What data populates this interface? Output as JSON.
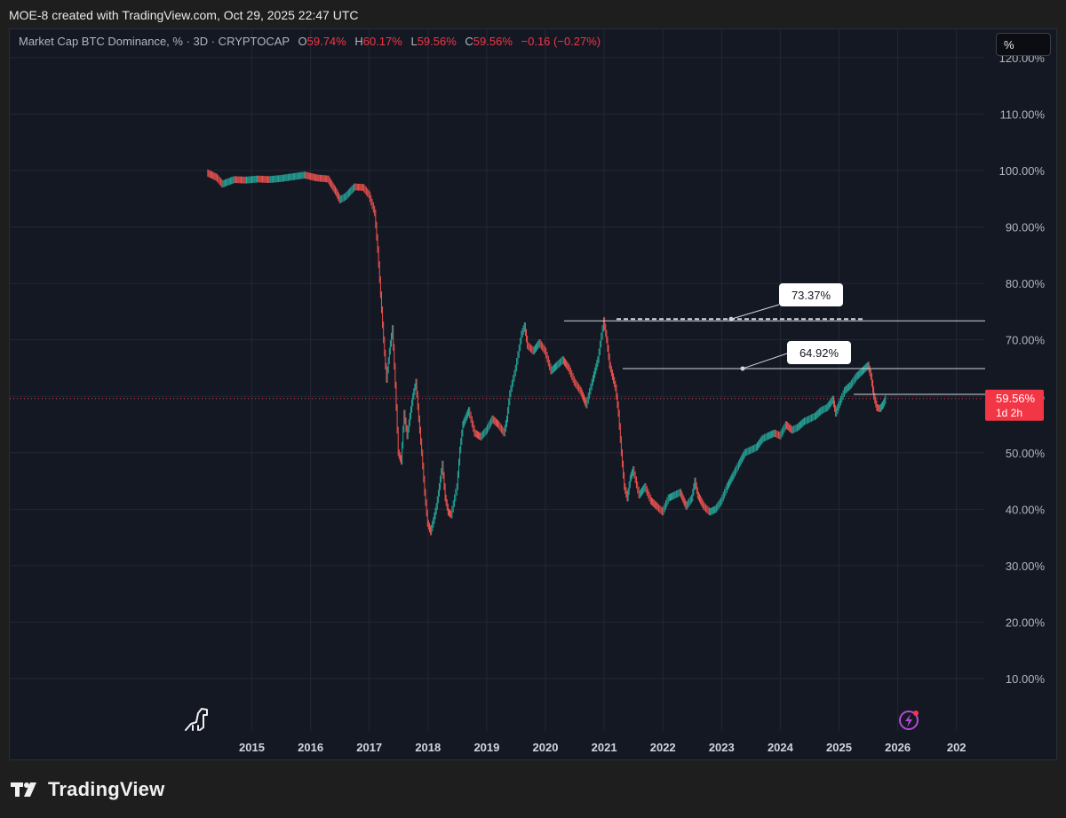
{
  "caption": "MOE-8 created with TradingView.com, Oct 29, 2025 22:47 UTC",
  "legend": {
    "symbol": "Market Cap BTC Dominance, % · 3D · CRYPTOCAP",
    "o_label": "O",
    "o_value": "59.74%",
    "h_label": "H",
    "h_value": "60.17%",
    "l_label": "L",
    "l_value": "59.56%",
    "c_label": "C",
    "c_value": "59.56%",
    "change": "−0.16 (−0.27%)"
  },
  "scale_button": "%",
  "price_tag": {
    "value": "59.56%",
    "countdown": "1d 2h",
    "color": "#f23645"
  },
  "annotations": [
    {
      "text": "73.37%",
      "level": 73.37
    },
    {
      "text": "64.92%",
      "level": 64.92
    }
  ],
  "brand": "TradingView",
  "icons": {
    "logo": "dinosaur-icon",
    "alert": "lightning-icon",
    "brand": "tradingview-logo-icon"
  },
  "colors": {
    "up": "#26a69a",
    "down": "#ef5350",
    "price_line": "#f23645",
    "grid": "#232734"
  },
  "chart_data": {
    "type": "line",
    "title": "Market Cap BTC Dominance, % · 3D · CRYPTOCAP",
    "xlabel": "",
    "ylabel": "",
    "ylim": [
      0,
      122
    ],
    "xlim": [
      2013.55,
      2027.15
    ],
    "grid": true,
    "log_scale": false,
    "x_ticks": [
      "2015",
      "2016",
      "2017",
      "2018",
      "2019",
      "2020",
      "2021",
      "2022",
      "2023",
      "2024",
      "2025",
      "2026",
      "202"
    ],
    "y_ticks": [
      "120.00%",
      "110.00%",
      "100.00%",
      "90.00%",
      "80.00%",
      "70.00%",
      "60.00%",
      "50.00%",
      "40.00%",
      "30.00%",
      "20.00%",
      "10.00%"
    ],
    "series": [
      {
        "values": [
          [
            2014.24,
            99.6
          ],
          [
            2014.4,
            98.8
          ],
          [
            2014.5,
            97.6
          ],
          [
            2014.7,
            98.4
          ],
          [
            2014.9,
            98.3
          ],
          [
            2015.1,
            98.5
          ],
          [
            2015.3,
            98.4
          ],
          [
            2015.5,
            98.6
          ],
          [
            2015.7,
            98.9
          ],
          [
            2015.9,
            99.2
          ],
          [
            2016.1,
            98.7
          ],
          [
            2016.3,
            98.5
          ],
          [
            2016.45,
            96.0
          ],
          [
            2016.5,
            94.8
          ],
          [
            2016.6,
            95.4
          ],
          [
            2016.75,
            97.1
          ],
          [
            2016.9,
            97.0
          ],
          [
            2017.0,
            95.7
          ],
          [
            2017.1,
            92.5
          ],
          [
            2017.15,
            86.0
          ],
          [
            2017.2,
            78.0
          ],
          [
            2017.25,
            70.0
          ],
          [
            2017.3,
            63.0
          ],
          [
            2017.35,
            68.0
          ],
          [
            2017.4,
            72.0
          ],
          [
            2017.45,
            62.0
          ],
          [
            2017.5,
            50.0
          ],
          [
            2017.55,
            48.5
          ],
          [
            2017.6,
            57.0
          ],
          [
            2017.65,
            53.0
          ],
          [
            2017.7,
            56.5
          ],
          [
            2017.75,
            60.0
          ],
          [
            2017.8,
            62.5
          ],
          [
            2017.85,
            56.0
          ],
          [
            2017.9,
            50.0
          ],
          [
            2017.95,
            43.0
          ],
          [
            2018.0,
            37.5
          ],
          [
            2018.05,
            36.0
          ],
          [
            2018.1,
            38.0
          ],
          [
            2018.15,
            40.5
          ],
          [
            2018.2,
            44.0
          ],
          [
            2018.25,
            48.0
          ],
          [
            2018.3,
            42.0
          ],
          [
            2018.35,
            39.5
          ],
          [
            2018.4,
            39.0
          ],
          [
            2018.5,
            44.0
          ],
          [
            2018.55,
            50.5
          ],
          [
            2018.6,
            55.0
          ],
          [
            2018.7,
            57.5
          ],
          [
            2018.8,
            53.5
          ],
          [
            2018.9,
            52.8
          ],
          [
            2019.0,
            54.0
          ],
          [
            2019.1,
            56.0
          ],
          [
            2019.2,
            55.0
          ],
          [
            2019.3,
            53.5
          ],
          [
            2019.35,
            56.0
          ],
          [
            2019.4,
            60.5
          ],
          [
            2019.5,
            65.0
          ],
          [
            2019.6,
            71.0
          ],
          [
            2019.65,
            72.5
          ],
          [
            2019.7,
            69.0
          ],
          [
            2019.8,
            68.0
          ],
          [
            2019.9,
            69.5
          ],
          [
            2020.0,
            68.0
          ],
          [
            2020.1,
            64.5
          ],
          [
            2020.2,
            65.5
          ],
          [
            2020.3,
            66.5
          ],
          [
            2020.4,
            65.0
          ],
          [
            2020.5,
            62.5
          ],
          [
            2020.6,
            61.0
          ],
          [
            2020.7,
            58.5
          ],
          [
            2020.8,
            62.5
          ],
          [
            2020.9,
            66.5
          ],
          [
            2021.0,
            73.4
          ],
          [
            2021.05,
            70.0
          ],
          [
            2021.1,
            65.5
          ],
          [
            2021.2,
            61.5
          ],
          [
            2021.25,
            57.0
          ],
          [
            2021.3,
            50.0
          ],
          [
            2021.35,
            44.0
          ],
          [
            2021.4,
            42.0
          ],
          [
            2021.45,
            45.5
          ],
          [
            2021.5,
            47.0
          ],
          [
            2021.6,
            42.5
          ],
          [
            2021.7,
            44.0
          ],
          [
            2021.8,
            41.5
          ],
          [
            2021.9,
            40.5
          ],
          [
            2022.0,
            39.5
          ],
          [
            2022.1,
            42.0
          ],
          [
            2022.2,
            42.5
          ],
          [
            2022.3,
            43.0
          ],
          [
            2022.4,
            40.5
          ],
          [
            2022.5,
            42.0
          ],
          [
            2022.55,
            45.0
          ],
          [
            2022.6,
            42.5
          ],
          [
            2022.7,
            40.5
          ],
          [
            2022.8,
            39.5
          ],
          [
            2022.9,
            40.0
          ],
          [
            2023.0,
            41.5
          ],
          [
            2023.1,
            44.0
          ],
          [
            2023.2,
            46.0
          ],
          [
            2023.3,
            48.0
          ],
          [
            2023.4,
            50.0
          ],
          [
            2023.5,
            50.5
          ],
          [
            2023.6,
            51.0
          ],
          [
            2023.7,
            52.5
          ],
          [
            2023.8,
            53.0
          ],
          [
            2023.9,
            53.5
          ],
          [
            2024.0,
            53.0
          ],
          [
            2024.1,
            55.0
          ],
          [
            2024.2,
            54.0
          ],
          [
            2024.3,
            54.5
          ],
          [
            2024.4,
            55.5
          ],
          [
            2024.5,
            56.0
          ],
          [
            2024.6,
            56.5
          ],
          [
            2024.7,
            57.5
          ],
          [
            2024.8,
            58.0
          ],
          [
            2024.9,
            59.5
          ],
          [
            2024.95,
            57.0
          ],
          [
            2025.0,
            58.5
          ],
          [
            2025.1,
            61.0
          ],
          [
            2025.2,
            62.0
          ],
          [
            2025.3,
            63.5
          ],
          [
            2025.4,
            64.5
          ],
          [
            2025.45,
            65.0
          ],
          [
            2025.5,
            65.5
          ],
          [
            2025.55,
            63.5
          ],
          [
            2025.6,
            60.0
          ],
          [
            2025.65,
            58.0
          ],
          [
            2025.7,
            57.8
          ],
          [
            2025.75,
            58.5
          ],
          [
            2025.8,
            59.6
          ]
        ]
      }
    ]
  }
}
